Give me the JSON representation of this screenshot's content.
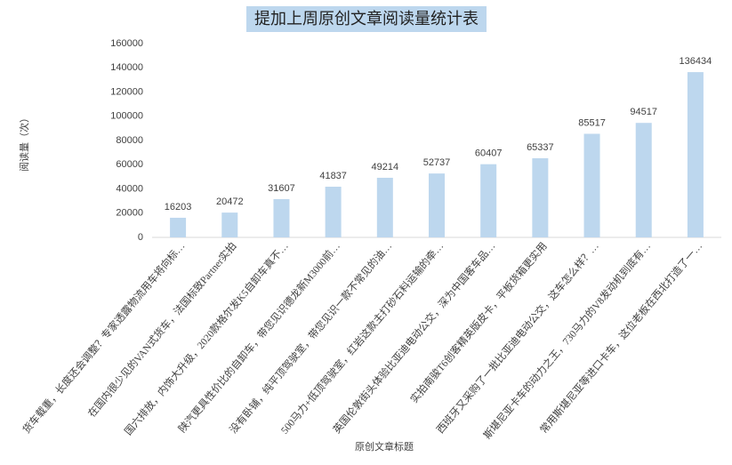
{
  "chart_data": {
    "type": "bar",
    "title": "提加上周原创文章阅读量统计表",
    "x_label": "原创文章标题",
    "y_label": "阅读量（次）",
    "categories": [
      "货车载重，长度还会调整？专家透露物流用车将向标…",
      "在国内很少见的VAN式货车，法国标致Partner实拍",
      "国六排放，内饰大升级，2020款格尔发K5自卸车真不…",
      "陕汽更具性价比的自卸车，带您见识德龙新M3000前…",
      "没有卧铺，纯平顶驾驶室，带您见识一款不常见的油…",
      "500马力+低顶驾驶室，红岩这款主打砂石料运输的牵…",
      "英国伦敦街头体验比亚迪电动公交，深为中国客车品…",
      "实拍南骏T6创客精英版皮卡，平板货箱更实用",
      "西班牙又采购了一批比亚迪电动公交，这车怎么样？…",
      "斯堪尼亚卡车的动力之王，730马力的V8发动机到底有…",
      "常用斯堪尼亚等进口卡车，这位老板在西北打造了一…"
    ],
    "values": [
      16203,
      20472,
      31607,
      41837,
      49214,
      52737,
      60407,
      65337,
      85517,
      94517,
      136434
    ],
    "color": "#bdd7ee",
    "ylim": [
      0,
      160000
    ],
    "yticks": [
      0,
      20000,
      40000,
      60000,
      80000,
      100000,
      120000,
      140000,
      160000
    ],
    "grid": false
  }
}
